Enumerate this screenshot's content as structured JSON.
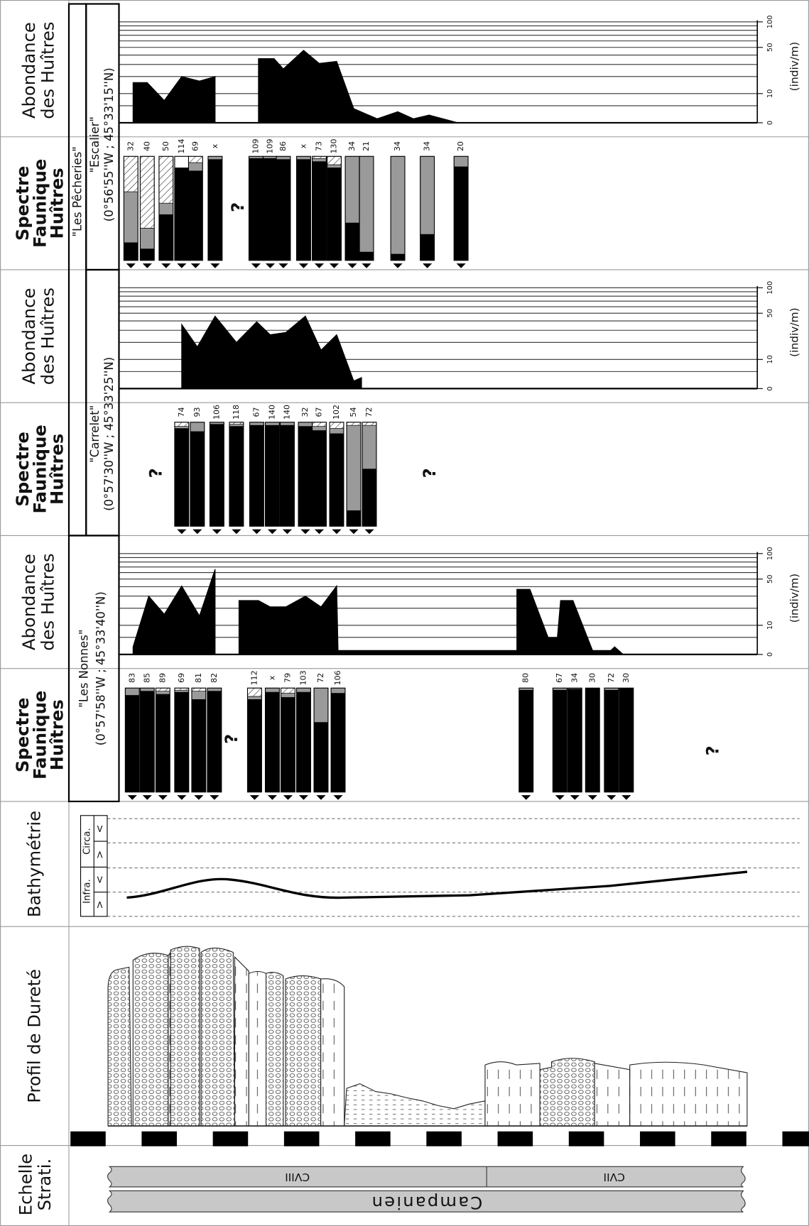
{
  "row_labels": {
    "abundance": [
      "Abondance",
      "des Huîtres"
    ],
    "spectrum": [
      "Spectre",
      "Faunique",
      "Huîtres"
    ],
    "bathymetry": "Bathymétrie",
    "hardness": "Profil de Dureté",
    "strati": [
      "Echelle",
      "Strati."
    ]
  },
  "group": "\"Les Pêcheries\"",
  "xlim": [
    0,
    20.8
  ],
  "abundance_axis": {
    "scale": "log",
    "ylim": [
      0,
      100
    ],
    "yticks": [
      0,
      10,
      50,
      100
    ],
    "grid": [
      5,
      10,
      20,
      30,
      40,
      50,
      60,
      70,
      80,
      90,
      100
    ],
    "unit": "(indiv/m)"
  },
  "sites": [
    {
      "name": "\"Escalier\"",
      "coords": "(0°56'55''W ; 45°33'15''N)",
      "notes": [
        "?"
      ],
      "abundance": {
        "x": [
          1.76,
          1.76,
          2.16,
          2.64,
          3.13,
          3.63,
          4.07,
          4.07,
          null,
          5.29,
          5.29,
          5.73,
          5.99,
          6.56,
          7.0,
          7.49,
          7.97,
          8.63,
          9.21,
          9.65,
          10.09,
          10.9
        ],
        "values": [
          0,
          16,
          16,
          7,
          20,
          17,
          20,
          0,
          null,
          0,
          36,
          36,
          26,
          46,
          31,
          33,
          4,
          1,
          3,
          1,
          2,
          0
        ]
      },
      "bars": [
        {
          "x": 1.7,
          "label": "32",
          "segments": {
            "black": 17,
            "grey": 49,
            "hatched": 34
          }
        },
        {
          "x": 2.16,
          "label": "40",
          "segments": {
            "black": 11,
            "grey": 20,
            "hatched": 69
          }
        },
        {
          "x": 2.69,
          "label": "50",
          "segments": {
            "black": 44,
            "grey": 11,
            "hatched": 45
          }
        },
        {
          "x": 3.13,
          "label": "114",
          "segments": {
            "black": 89,
            "white": 11
          }
        },
        {
          "x": 3.52,
          "label": "69",
          "segments": {
            "black": 86,
            "grey": 8,
            "hatched": 6
          }
        },
        {
          "x": 4.07,
          "label": "x",
          "segments": {
            "black": 97,
            "grey": 3
          }
        },
        {
          "x": 5.22,
          "label": "109",
          "segments": {
            "black": 98,
            "grey": 2
          }
        },
        {
          "x": 5.62,
          "label": "109",
          "segments": {
            "black": 98,
            "grey": 2
          }
        },
        {
          "x": 5.99,
          "label": "86",
          "segments": {
            "black": 97,
            "grey": 3
          }
        },
        {
          "x": 6.56,
          "label": "x",
          "segments": {
            "black": 97,
            "grey": 3
          }
        },
        {
          "x": 7.0,
          "label": "73",
          "segments": {
            "black": 95,
            "grey": 3,
            "hatched": 2
          }
        },
        {
          "x": 7.42,
          "label": "130",
          "segments": {
            "black": 89,
            "grey": 3,
            "hatched": 8
          }
        },
        {
          "x": 7.93,
          "label": "34",
          "segments": {
            "black": 36,
            "grey": 64
          }
        },
        {
          "x": 8.33,
          "label": "21",
          "segments": {
            "black": 8,
            "grey": 92
          }
        },
        {
          "x": 9.21,
          "label": "34",
          "segments": {
            "black": 6,
            "grey": 94
          }
        },
        {
          "x": 10.04,
          "label": "34",
          "segments": {
            "black": 25,
            "grey": 75
          }
        },
        {
          "x": 10.99,
          "label": "20",
          "segments": {
            "black": 90,
            "grey": 10
          }
        }
      ]
    },
    {
      "name": "\"Carrelet\"",
      "coords": "(0°57'30''W ; 45°33'25''N)",
      "notes": [
        "?",
        "?"
      ],
      "abundance": {
        "x": [
          3.13,
          3.13,
          3.57,
          4.07,
          4.67,
          5.24,
          5.62,
          6.06,
          6.61,
          7.05,
          7.49,
          7.97,
          8.19,
          8.19
        ],
        "values": [
          0,
          36,
          17,
          46,
          20,
          39,
          26,
          28,
          46,
          15,
          26,
          2,
          3,
          0
        ]
      },
      "bars": [
        {
          "x": 3.13,
          "label": "74",
          "segments": {
            "black": 94,
            "grey": 2,
            "hatched": 4
          }
        },
        {
          "x": 3.57,
          "label": "93",
          "segments": {
            "black": 91,
            "grey": 9
          }
        },
        {
          "x": 4.12,
          "label": "106",
          "segments": {
            "black": 98,
            "grey": 2
          }
        },
        {
          "x": 4.67,
          "label": "118",
          "segments": {
            "black": 96,
            "grey": 2,
            "hatched": 2
          }
        },
        {
          "x": 5.24,
          "label": "67",
          "segments": {
            "black": 97,
            "grey": 3
          }
        },
        {
          "x": 5.68,
          "label": "140",
          "segments": {
            "black": 97,
            "grey": 3
          }
        },
        {
          "x": 6.1,
          "label": "140",
          "segments": {
            "black": 97,
            "grey": 3
          }
        },
        {
          "x": 6.61,
          "label": "32",
          "segments": {
            "black": 96,
            "grey": 4
          }
        },
        {
          "x": 7.0,
          "label": "67",
          "segments": {
            "black": 92,
            "grey": 4,
            "hatched": 4
          }
        },
        {
          "x": 7.49,
          "label": "102",
          "segments": {
            "black": 89,
            "grey": 5,
            "hatched": 6
          }
        },
        {
          "x": 7.97,
          "label": "54",
          "segments": {
            "black": 15,
            "grey": 82,
            "hatched": 3
          }
        },
        {
          "x": 8.41,
          "label": "72",
          "segments": {
            "black": 55,
            "grey": 42,
            "hatched": 3
          }
        }
      ]
    },
    {
      "name": "\"Les Nonnes\"",
      "coords": "(0°57'58''W ; 45°33'40''N)",
      "notes": [
        "?",
        "?"
      ],
      "abundance": {
        "x": [
          1.76,
          1.76,
          2.2,
          2.64,
          3.13,
          3.63,
          4.07,
          4.07,
          null,
          4.74,
          4.74,
          5.29,
          5.62,
          6.06,
          6.61,
          7.05,
          7.49,
          7.53,
          12.56,
          12.56,
          12.93,
          13.44,
          13.7,
          13.79,
          14.14,
          14.69,
          15.2,
          15.31,
          15.55
        ],
        "values": [
          0,
          2,
          30,
          16,
          41,
          15,
          66,
          0,
          null,
          0,
          26,
          26,
          21,
          21,
          30,
          21,
          41,
          1,
          1,
          37,
          37,
          5,
          5,
          26,
          26,
          1,
          1,
          2,
          0
        ]
      },
      "bars": [
        {
          "x": 1.74,
          "label": "83",
          "segments": {
            "black": 93,
            "grey": 7
          }
        },
        {
          "x": 2.16,
          "label": "85",
          "segments": {
            "black": 97,
            "grey": 3
          }
        },
        {
          "x": 2.6,
          "label": "89",
          "segments": {
            "black": 94,
            "grey": 3,
            "hatched": 3
          }
        },
        {
          "x": 3.13,
          "label": "69",
          "segments": {
            "black": 96,
            "grey": 2,
            "hatched": 2
          }
        },
        {
          "x": 3.61,
          "label": "81",
          "segments": {
            "black": 89,
            "grey": 8,
            "hatched": 3
          }
        },
        {
          "x": 4.05,
          "label": "82",
          "segments": {
            "black": 97,
            "grey": 3
          }
        },
        {
          "x": 5.18,
          "label": "112",
          "segments": {
            "black": 89,
            "grey": 3,
            "hatched": 8
          }
        },
        {
          "x": 5.68,
          "label": "x",
          "segments": {
            "black": 96,
            "grey": 4
          }
        },
        {
          "x": 6.12,
          "label": "79",
          "segments": {
            "black": 91,
            "grey": 4,
            "hatched": 5
          }
        },
        {
          "x": 6.56,
          "label": "103",
          "segments": {
            "black": 96,
            "grey": 4
          }
        },
        {
          "x": 7.05,
          "label": "72",
          "segments": {
            "black": 67,
            "grey": 33
          }
        },
        {
          "x": 7.53,
          "label": "106",
          "segments": {
            "black": 95,
            "grey": 5
          }
        },
        {
          "x": 12.82,
          "label": "80",
          "segments": {
            "black": 98,
            "grey": 2
          }
        },
        {
          "x": 13.77,
          "label": "67",
          "segments": {
            "black": 98,
            "grey": 2
          }
        },
        {
          "x": 14.19,
          "label": "34",
          "segments": {
            "black": 99,
            "grey": 1
          }
        },
        {
          "x": 14.69,
          "label": "30",
          "segments": {
            "black": 100
          }
        },
        {
          "x": 15.22,
          "label": "72",
          "segments": {
            "black": 98,
            "grey": 2
          }
        },
        {
          "x": 15.64,
          "label": "30",
          "segments": {
            "black": 100
          }
        }
      ]
    }
  ],
  "bathymetry": {
    "zones": [
      "Circa.",
      "Infra."
    ],
    "symbols": [
      "<",
      ">",
      "<",
      ">"
    ]
  },
  "strati": {
    "stages": [
      "CVIII",
      "CVII"
    ],
    "stage": "Campanien"
  }
}
